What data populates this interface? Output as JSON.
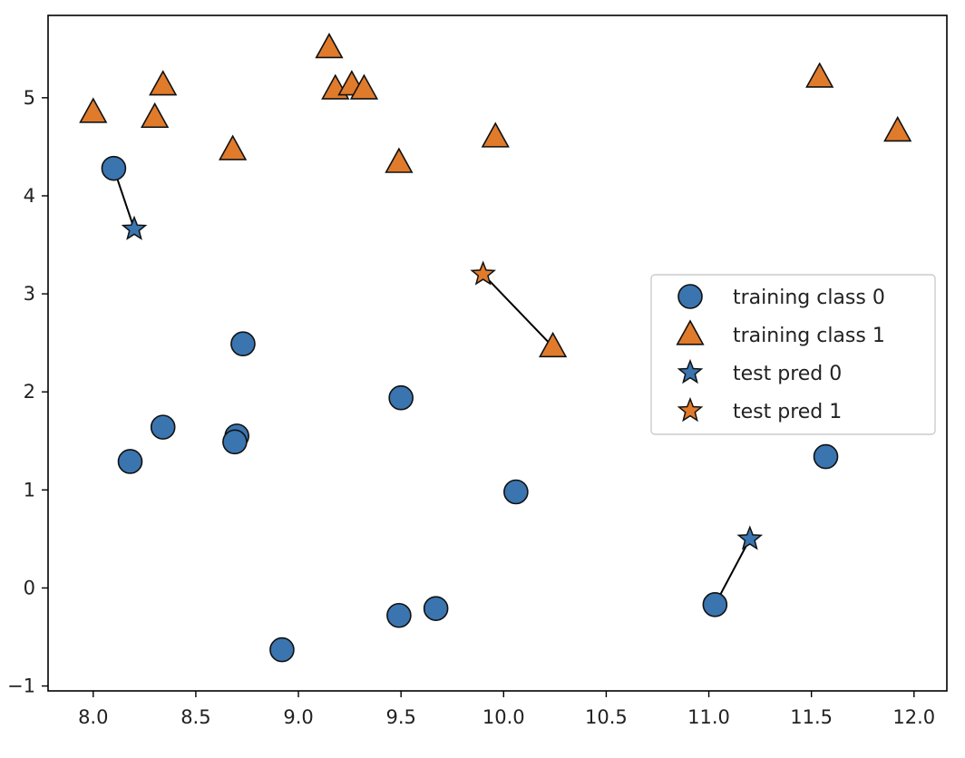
{
  "chart_data": {
    "type": "scatter",
    "title": "",
    "xlabel": "",
    "ylabel": "",
    "xlim": [
      7.78,
      12.16
    ],
    "ylim": [
      -1.05,
      5.84
    ],
    "grid": false,
    "x_ticks": [
      8.0,
      8.5,
      9.0,
      9.5,
      10.0,
      10.5,
      11.0,
      11.5,
      12.0
    ],
    "x_tick_labels": [
      "8.0",
      "8.5",
      "9.0",
      "9.5",
      "10.0",
      "10.5",
      "11.0",
      "11.5",
      "12.0"
    ],
    "y_ticks": [
      -1,
      0,
      1,
      2,
      3,
      4,
      5
    ],
    "y_tick_labels": [
      "−1",
      "0",
      "1",
      "2",
      "3",
      "4",
      "5"
    ],
    "legend_position": "center-right",
    "series": [
      {
        "name": "training class 0",
        "marker": "circle",
        "color": "#3a75b0",
        "points": [
          {
            "x": 8.1,
            "y": 4.28
          },
          {
            "x": 8.18,
            "y": 1.29
          },
          {
            "x": 8.34,
            "y": 1.64
          },
          {
            "x": 8.7,
            "y": 1.55
          },
          {
            "x": 8.69,
            "y": 1.49
          },
          {
            "x": 8.73,
            "y": 2.49
          },
          {
            "x": 8.92,
            "y": -0.63
          },
          {
            "x": 9.49,
            "y": -0.28
          },
          {
            "x": 9.5,
            "y": 1.94
          },
          {
            "x": 9.67,
            "y": -0.21
          },
          {
            "x": 10.06,
            "y": 0.98
          },
          {
            "x": 11.03,
            "y": -0.17
          },
          {
            "x": 11.57,
            "y": 1.34
          }
        ]
      },
      {
        "name": "training class 1",
        "marker": "triangle",
        "color": "#e07b2c",
        "points": [
          {
            "x": 8.0,
            "y": 4.85
          },
          {
            "x": 8.3,
            "y": 4.8
          },
          {
            "x": 8.34,
            "y": 5.13
          },
          {
            "x": 8.68,
            "y": 4.47
          },
          {
            "x": 9.15,
            "y": 5.51
          },
          {
            "x": 9.18,
            "y": 5.09
          },
          {
            "x": 9.26,
            "y": 5.13
          },
          {
            "x": 9.32,
            "y": 5.09
          },
          {
            "x": 9.49,
            "y": 4.34
          },
          {
            "x": 9.96,
            "y": 4.6
          },
          {
            "x": 10.24,
            "y": 2.46
          },
          {
            "x": 11.54,
            "y": 5.21
          },
          {
            "x": 11.92,
            "y": 4.66
          }
        ]
      },
      {
        "name": "test pred 0",
        "marker": "star",
        "color": "#3a75b0",
        "points": [
          {
            "x": 8.2,
            "y": 3.66
          },
          {
            "x": 11.2,
            "y": 0.5
          }
        ]
      },
      {
        "name": "test pred 1",
        "marker": "star",
        "color": "#e07b2c",
        "points": [
          {
            "x": 9.9,
            "y": 3.2
          }
        ]
      }
    ],
    "neighbor_lines": [
      {
        "from": {
          "x": 8.2,
          "y": 3.66
        },
        "to": {
          "x": 8.1,
          "y": 4.28
        }
      },
      {
        "from": {
          "x": 9.9,
          "y": 3.2
        },
        "to": {
          "x": 10.24,
          "y": 2.46
        }
      },
      {
        "from": {
          "x": 11.2,
          "y": 0.5
        },
        "to": {
          "x": 11.03,
          "y": -0.17
        }
      }
    ]
  }
}
